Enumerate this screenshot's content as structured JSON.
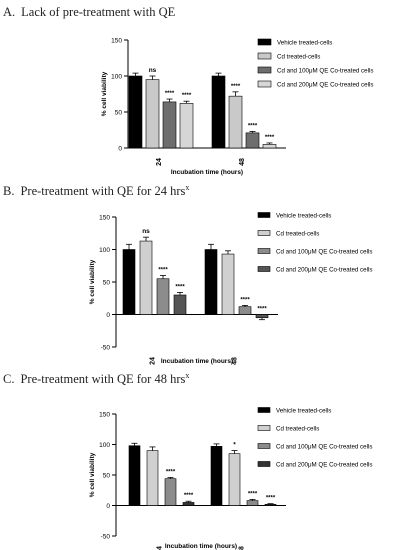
{
  "chart_data": [
    {
      "type": "bar",
      "panel_letter": "A.",
      "title": "Lack of pre-treatment with QE",
      "xlabel": "Incubation time (hours)",
      "ylabel": "% cell viability",
      "categories": [
        "24",
        "48"
      ],
      "ylim": [
        0,
        150
      ],
      "yticks": [
        "0",
        "50",
        "100",
        "150"
      ],
      "series": [
        {
          "name": "Vehicle treated-cells",
          "color": "#000000",
          "values": [
            100,
            100
          ],
          "errors": [
            4,
            4
          ],
          "sig": [
            "",
            ""
          ]
        },
        {
          "name": "Cd treated-cells",
          "color": "#c9c9c9",
          "values": [
            95,
            72
          ],
          "errors": [
            5,
            6
          ],
          "sig": [
            "ns",
            "****"
          ]
        },
        {
          "name": "Cd and 100μM QE Co-treated cells",
          "color": "#6e6e6e",
          "values": [
            64,
            21
          ],
          "errors": [
            4,
            2
          ],
          "sig": [
            "****",
            "****"
          ]
        },
        {
          "name": "Cd and 200μM QE Co-treated cells",
          "color": "#d6d6d6",
          "values": [
            62,
            5
          ],
          "errors": [
            3,
            2
          ],
          "sig": [
            "****",
            "****"
          ]
        }
      ],
      "legend_position": "right"
    },
    {
      "type": "bar",
      "panel_letter": "B.",
      "title": "Pre-treatment with QE for 24 hrs",
      "title_superscript": "x",
      "xlabel": "Incubation time (hours)",
      "ylabel": "% cell viability",
      "categories": [
        "24",
        "48"
      ],
      "ylim": [
        -50,
        150
      ],
      "yticks": [
        "-50",
        "0",
        "50",
        "100",
        "150"
      ],
      "series": [
        {
          "name": "Vehicle treated-cells",
          "color": "#000000",
          "values": [
            100,
            100
          ],
          "errors": [
            8,
            8
          ],
          "sig": [
            "",
            ""
          ]
        },
        {
          "name": "Cd treated-cells",
          "color": "#d0d0d0",
          "values": [
            113,
            93
          ],
          "errors": [
            6,
            5
          ],
          "sig": [
            "ns",
            ""
          ]
        },
        {
          "name": "Cd and 100μM QE Co-treated cells",
          "color": "#8c8c8c",
          "values": [
            55,
            12
          ],
          "errors": [
            5,
            2
          ],
          "sig": [
            "****",
            "****"
          ]
        },
        {
          "name": "Cd and 200μM QE Co-treated cells",
          "color": "#555555",
          "values": [
            30,
            -5
          ],
          "errors": [
            4,
            3
          ],
          "sig": [
            "****",
            "****"
          ]
        }
      ],
      "legend_position": "right"
    },
    {
      "type": "bar",
      "panel_letter": "C.",
      "title": "Pre-treatment with QE for 48 hrs",
      "title_superscript": "x",
      "xlabel": "Incubation time (hours)",
      "ylabel": "% cell viability",
      "categories": [
        "24",
        "48"
      ],
      "ylim": [
        -50,
        150
      ],
      "yticks": [
        "-50",
        "0",
        "50",
        "100",
        "150"
      ],
      "series": [
        {
          "name": "Vehicle treated-cells",
          "color": "#000000",
          "values": [
            98,
            97
          ],
          "errors": [
            4,
            4
          ],
          "sig": [
            "",
            ""
          ]
        },
        {
          "name": "Cd treated-cells",
          "color": "#d0d0d0",
          "values": [
            90,
            85
          ],
          "errors": [
            6,
            5
          ],
          "sig": [
            "",
            "*"
          ]
        },
        {
          "name": "Cd and 100μM QE Co-treated cells",
          "color": "#8c8c8c",
          "values": [
            44,
            8
          ],
          "errors": [
            2,
            2
          ],
          "sig": [
            "****",
            "****"
          ]
        },
        {
          "name": "Cd and 200μM QE Co-treated cells",
          "color": "#333333",
          "values": [
            5,
            2
          ],
          "errors": [
            2,
            1
          ],
          "sig": [
            "****",
            "****"
          ]
        }
      ],
      "legend_position": "right"
    }
  ]
}
